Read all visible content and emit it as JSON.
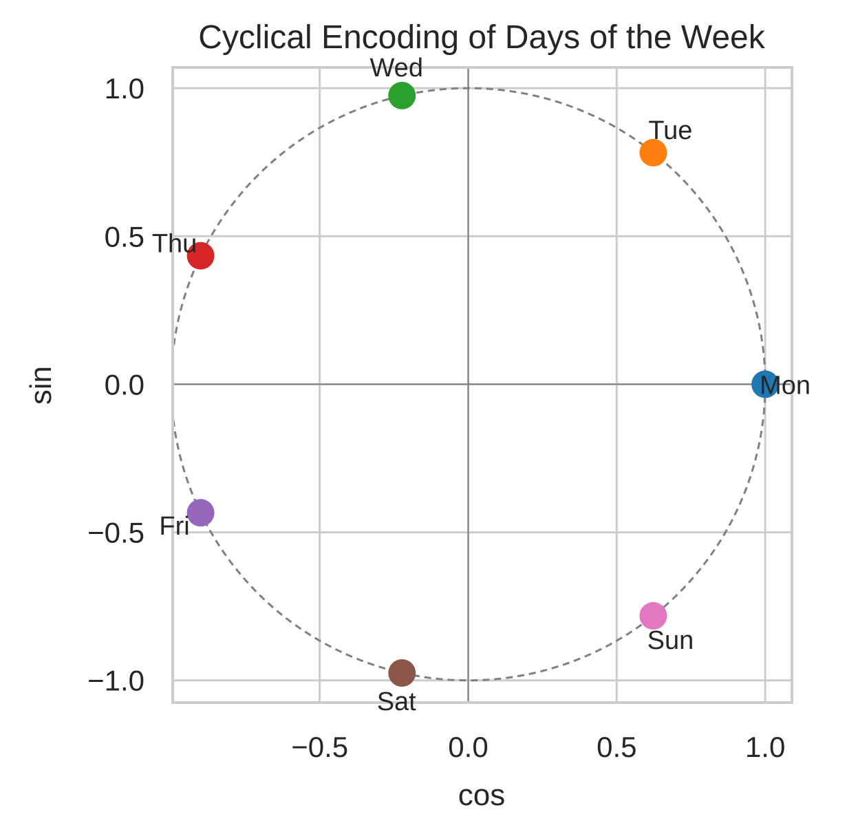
{
  "chart_data": {
    "type": "scatter",
    "title": "Cyclical Encoding of Days of the Week",
    "xlabel": "cos",
    "ylabel": "sin",
    "xlim": [
      -0.995,
      1.09
    ],
    "ylim": [
      -1.075,
      1.07
    ],
    "xticks": [
      -0.5,
      0.0,
      0.5,
      1.0
    ],
    "yticks": [
      -1.0,
      -0.5,
      0.0,
      0.5,
      1.0
    ],
    "xtick_labels": [
      "−0.5",
      "0.0",
      "0.5",
      "1.0"
    ],
    "ytick_labels": [
      "−1.0",
      "−0.5",
      "0.0",
      "0.5",
      "1.0"
    ],
    "grid": true,
    "reference_lines": {
      "x": 0,
      "y": 0
    },
    "unit_circle": {
      "radius": 1,
      "style": "dashed",
      "color": "#808080"
    },
    "points": [
      {
        "label": "Mon",
        "x": 1.0,
        "y": 0.0,
        "color": "#1f77b4",
        "label_position": "right"
      },
      {
        "label": "Tue",
        "x": 0.623,
        "y": 0.782,
        "color": "#ff7f0e",
        "label_position": "above"
      },
      {
        "label": "Wed",
        "x": -0.223,
        "y": 0.975,
        "color": "#2ca02c",
        "label_position": "above"
      },
      {
        "label": "Thu",
        "x": -0.901,
        "y": 0.434,
        "color": "#d62728",
        "label_position": "upper-left"
      },
      {
        "label": "Fri",
        "x": -0.901,
        "y": -0.434,
        "color": "#9467bd",
        "label_position": "lower-left"
      },
      {
        "label": "Sat",
        "x": -0.223,
        "y": -0.975,
        "color": "#8c564b",
        "label_position": "below"
      },
      {
        "label": "Sun",
        "x": 0.623,
        "y": -0.782,
        "color": "#e377c2",
        "label_position": "below"
      }
    ]
  }
}
